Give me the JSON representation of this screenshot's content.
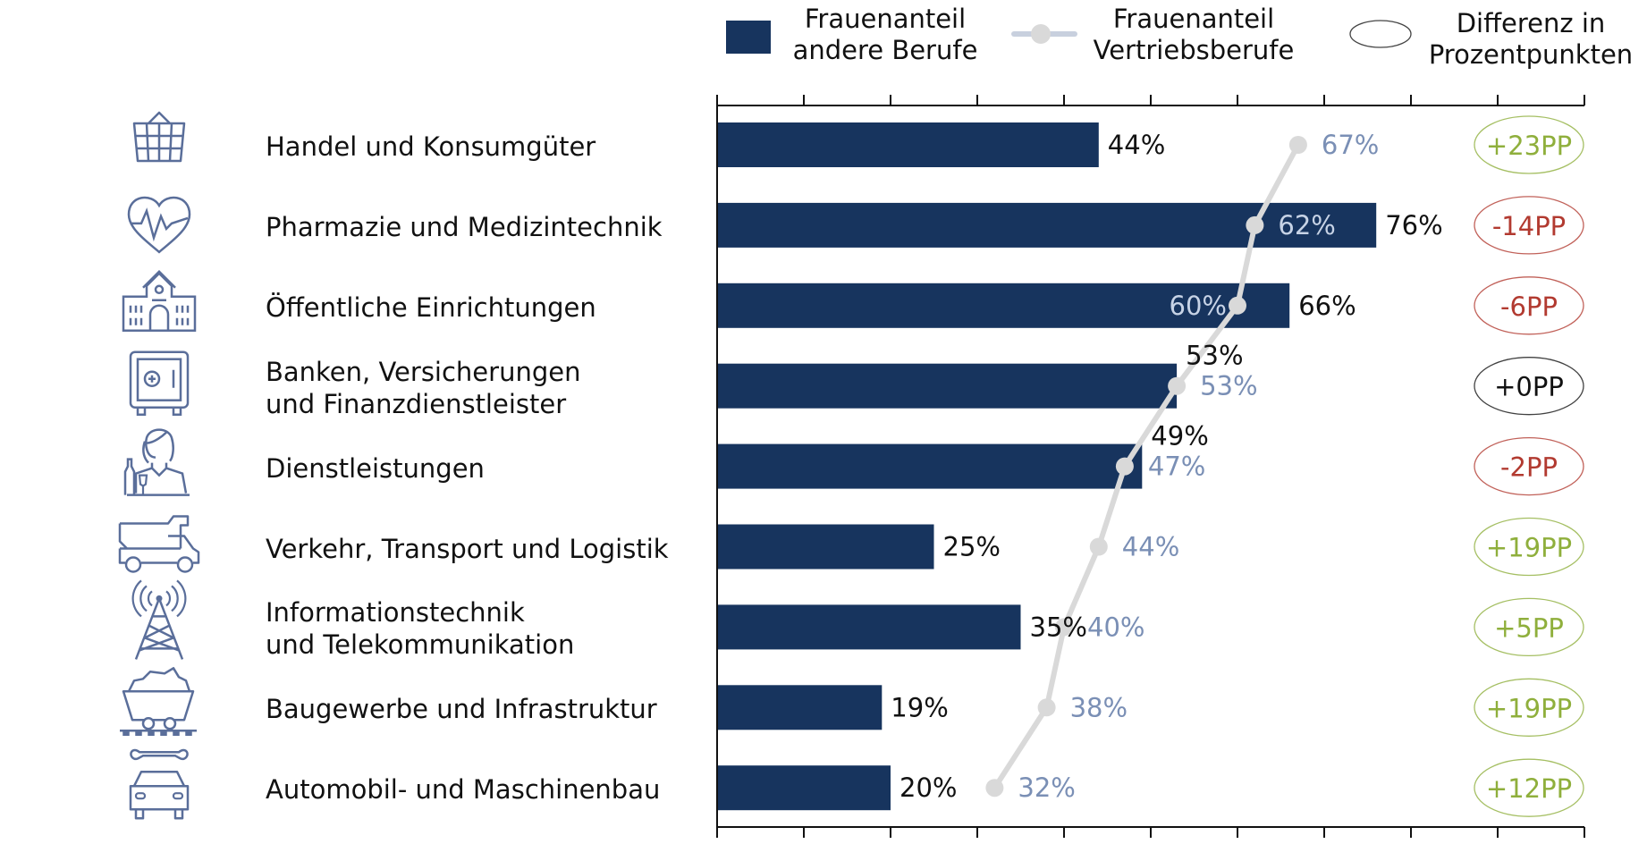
{
  "legend": {
    "bars": [
      "Frauenanteil",
      "andere Berufe"
    ],
    "line": [
      "Frauenanteil",
      "Vertriebsberufe"
    ],
    "diff": [
      "Differenz in",
      "Prozentpunkten"
    ]
  },
  "colors": {
    "bar": "#17345E",
    "line": "#D9D9D9",
    "line_label": "#7A8FB5",
    "line_label_inside": "#C7D3E6",
    "positive": "#8FAF3C",
    "negative": "#B23A30",
    "neutral": "#111111",
    "icon": "#5A6E9A"
  },
  "chart_data": {
    "type": "bar",
    "orientation": "horizontal",
    "xlim": [
      0,
      100
    ],
    "x_ticks": [
      0,
      10,
      20,
      30,
      40,
      50,
      60,
      70,
      80,
      90,
      100
    ],
    "tick_labels_shown": false,
    "categories": [
      {
        "lines": [
          "Handel und Konsumgüter"
        ],
        "icon": "shopping-basket-icon"
      },
      {
        "lines": [
          "Pharmazie und Medizintechnik"
        ],
        "icon": "heart-pulse-icon"
      },
      {
        "lines": [
          "Öffentliche Einrichtungen"
        ],
        "icon": "public-building-icon"
      },
      {
        "lines": [
          "Banken, Versicherungen",
          "und Finanzdienstleister"
        ],
        "icon": "safe-icon"
      },
      {
        "lines": [
          "Dienstleistungen"
        ],
        "icon": "waitress-icon"
      },
      {
        "lines": [
          "Verkehr, Transport und Logistik"
        ],
        "icon": "dump-truck-icon"
      },
      {
        "lines": [
          "Informationstechnik",
          "und Telekommunikation"
        ],
        "icon": "radio-tower-icon"
      },
      {
        "lines": [
          "Baugewerbe und Infrastruktur"
        ],
        "icon": "mine-cart-icon"
      },
      {
        "lines": [
          "Automobil- und Maschinenbau"
        ],
        "icon": "car-wrench-icon"
      }
    ],
    "series": [
      {
        "name": "Frauenanteil andere Berufe",
        "type": "bar",
        "values": [
          44,
          76,
          66,
          53,
          49,
          25,
          35,
          19,
          20
        ],
        "labels": [
          "44%",
          "76%",
          "66%",
          "53%",
          "49%",
          "25%",
          "35%",
          "19%",
          "20%"
        ]
      },
      {
        "name": "Frauenanteil Vertriebsberufe",
        "type": "line",
        "values": [
          67,
          62,
          60,
          53,
          47,
          44,
          40,
          38,
          32
        ],
        "labels": [
          "67%",
          "62%",
          "60%",
          "53%",
          "47%",
          "44%",
          "40%",
          "38%",
          "32%"
        ]
      },
      {
        "name": "Differenz in Prozentpunkten",
        "type": "annotation",
        "values": [
          23,
          -14,
          -6,
          0,
          -2,
          19,
          5,
          19,
          12
        ],
        "labels": [
          "+23PP",
          "-14PP",
          "-6PP",
          "+0PP",
          "-2PP",
          "+19PP",
          "+5PP",
          "+19PP",
          "+12PP"
        ]
      }
    ]
  }
}
